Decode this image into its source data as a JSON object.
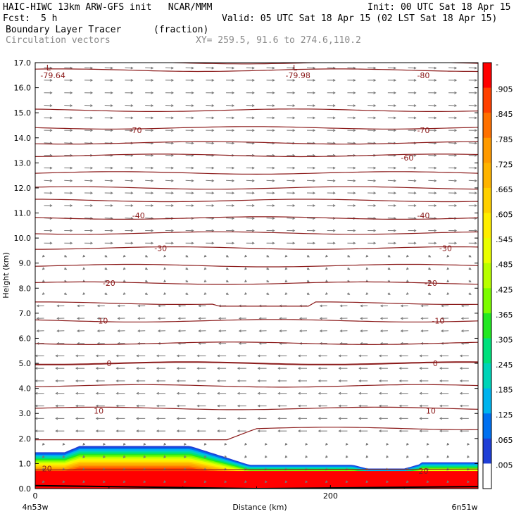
{
  "header": {
    "title_left": "HAIC-HIWC 13km ARW-GFS init   NCAR/MMM",
    "init": "Init: 00 UTC Sat 18 Apr 15",
    "fcst_label": "Fcst:",
    "fcst_value": "5 h",
    "valid": "Valid: 05 UTC Sat 18 Apr 15 (02 LST Sat 18 Apr 15)",
    "field1_name": "Boundary Layer Tracer",
    "field1_units": "(fraction)",
    "field2_name": "Circulation vectors",
    "xy_info": "XY= 259.5, 91.6 to 274.6,110.2"
  },
  "chart_data": {
    "type": "cross-section",
    "ylabel": "Height (km)",
    "xlabel": "Distance (km)",
    "ylim": [
      0,
      17
    ],
    "xlim": [
      0,
      300
    ],
    "y_ticks": [
      "0.0",
      "1.0",
      "2.0",
      "3.0",
      "4.0",
      "5.0",
      "6.0",
      "7.0",
      "8.0",
      "9.0",
      "10.0",
      "11.0",
      "12.0",
      "13.0",
      "14.0",
      "15.0",
      "16.0",
      "17.0"
    ],
    "x_ticks": [
      {
        "value": 0,
        "label": "0"
      },
      {
        "value": 200,
        "label": "200"
      }
    ],
    "x_endpoints": {
      "left": "4n53w",
      "right": "6n51w"
    },
    "colorbar_labels": [
      "-",
      ".905",
      ".845",
      ".785",
      ".725",
      ".665",
      ".605",
      ".545",
      ".485",
      ".425",
      ".365",
      ".305",
      ".245",
      ".185",
      ".125",
      ".065",
      ".005"
    ],
    "colors": {
      "contour": "#8b1a1a",
      "vector": "#777777",
      "scale": [
        "#ff0000",
        "#ff4000",
        "#ff7000",
        "#ff9a00",
        "#ffb400",
        "#ffd000",
        "#ffee00",
        "#eaff00",
        "#b8ff00",
        "#7cfc00",
        "#22e822",
        "#00e07c",
        "#00d4b8",
        "#00b4ee",
        "#0070f0",
        "#1f3fd6",
        "#ffffff"
      ]
    },
    "contour_labels": [
      {
        "x": 12,
        "y": 16.5,
        "text": "-79.64"
      },
      {
        "x": 178,
        "y": 16.5,
        "text": "-79.98"
      },
      {
        "x": 263,
        "y": 16.5,
        "text": "-80"
      },
      {
        "x": 68,
        "y": 14.3,
        "text": "-70"
      },
      {
        "x": 263,
        "y": 14.3,
        "text": "-70"
      },
      {
        "x": 252,
        "y": 13.2,
        "text": "-60"
      },
      {
        "x": 70,
        "y": 10.9,
        "text": "-40"
      },
      {
        "x": 263,
        "y": 10.9,
        "text": "-40"
      },
      {
        "x": 85,
        "y": 9.6,
        "text": "-30"
      },
      {
        "x": 278,
        "y": 9.6,
        "text": "-30"
      },
      {
        "x": 50,
        "y": 8.2,
        "text": "-20"
      },
      {
        "x": 268,
        "y": 8.2,
        "text": "-20"
      },
      {
        "x": 45,
        "y": 6.7,
        "text": "-10"
      },
      {
        "x": 273,
        "y": 6.7,
        "text": "-10"
      },
      {
        "x": 50,
        "y": 5.0,
        "text": "0"
      },
      {
        "x": 271,
        "y": 5.0,
        "text": "0"
      },
      {
        "x": 43,
        "y": 3.1,
        "text": "10"
      },
      {
        "x": 268,
        "y": 3.1,
        "text": "10"
      },
      {
        "x": 8,
        "y": 0.8,
        "text": "20"
      },
      {
        "x": 263,
        "y": 0.7,
        "text": "20"
      }
    ],
    "lows": [
      {
        "x": 9,
        "y": 16.8,
        "text": "L"
      },
      {
        "x": 176,
        "y": 16.8,
        "text": "L"
      }
    ],
    "contour_levels_km": [
      17.0,
      16.7,
      15.1,
      14.4,
      13.8,
      13.3,
      12.6,
      12.0,
      11.5,
      10.8,
      10.2,
      9.6,
      8.9,
      8.2,
      7.4,
      6.7,
      5.8,
      5.0,
      4.1,
      3.2,
      2.4
    ]
  }
}
